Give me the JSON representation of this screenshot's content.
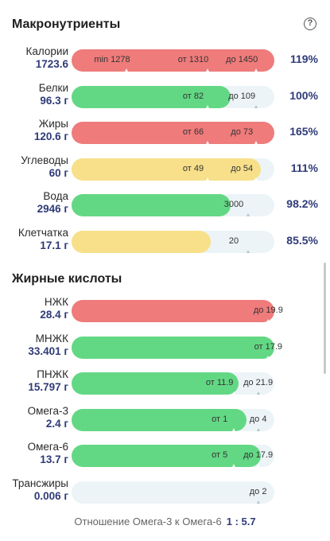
{
  "macro": {
    "title": "Макронутриенты",
    "rows": [
      {
        "label": "Калории",
        "amount": "1723.6",
        "pct": "119%",
        "color": "red",
        "fill": 100,
        "marks": [
          {
            "text": "min 1278",
            "pos": 0.2
          },
          {
            "text": "от 1310",
            "pos": 0.6
          },
          {
            "text": "до 1450",
            "pos": 0.84
          }
        ]
      },
      {
        "label": "Белки",
        "amount": "96.3 г",
        "pct": "100%",
        "color": "green",
        "fill": 78.4,
        "marks": [
          {
            "text": "от 82",
            "pos": 0.6
          },
          {
            "text": "до 109",
            "pos": 0.84
          }
        ]
      },
      {
        "label": "Жиры",
        "amount": "120.6 г",
        "pct": "165%",
        "color": "red",
        "fill": 100,
        "marks": [
          {
            "text": "от 66",
            "pos": 0.6
          },
          {
            "text": "до 73",
            "pos": 0.84
          }
        ]
      },
      {
        "label": "Углеводы",
        "amount": "60 г",
        "pct": "111%",
        "color": "yellow",
        "fill": 93.3,
        "marks": [
          {
            "text": "от 49",
            "pos": 0.6
          },
          {
            "text": "до 54",
            "pos": 0.84
          }
        ]
      },
      {
        "label": "Вода",
        "amount": "2946 г",
        "pct": "98.2%",
        "color": "green",
        "fill": 78.4,
        "marks": [
          {
            "text": "3000",
            "pos": 0.8
          }
        ]
      },
      {
        "label": "Клетчатка",
        "amount": "17.1 г",
        "pct": "85.5%",
        "color": "yellow",
        "fill": 68.6,
        "marks": [
          {
            "text": "20",
            "pos": 0.8
          }
        ]
      }
    ]
  },
  "fatty": {
    "title": "Жирные кислоты",
    "rows": [
      {
        "label": "НЖК",
        "amount": "28.4 г",
        "pct": "",
        "color": "red",
        "fill": 100,
        "marks": [
          {
            "text": "до 19.9",
            "pos": 0.97
          }
        ]
      },
      {
        "label": "МНЖК",
        "amount": "33.401 г",
        "pct": "",
        "color": "green",
        "fill": 100,
        "marks": [
          {
            "text": "от 17.9",
            "pos": 0.97
          }
        ]
      },
      {
        "label": "ПНЖК",
        "amount": "15.797 г",
        "pct": "",
        "color": "green",
        "fill": 82.4,
        "marks": [
          {
            "text": "от 11.9",
            "pos": 0.73
          },
          {
            "text": "до 21.9",
            "pos": 1.05
          }
        ]
      },
      {
        "label": "Омега-3",
        "amount": "2.4 г",
        "pct": "",
        "color": "green",
        "fill": 86.3,
        "marks": [
          {
            "text": "от 1",
            "pos": 0.73
          },
          {
            "text": "до 4",
            "pos": 1.05
          }
        ]
      },
      {
        "label": "Омега-6",
        "amount": "13.7 г",
        "pct": "",
        "color": "green",
        "fill": 93.3,
        "marks": [
          {
            "text": "от 5",
            "pos": 0.73
          },
          {
            "text": "до 17.9",
            "pos": 1.05
          }
        ]
      },
      {
        "label": "Трансжиры",
        "amount": "0.006 г",
        "pct": "",
        "color": "green",
        "fill": 0,
        "marks": [
          {
            "text": "до 2",
            "pos": 1.05
          }
        ]
      }
    ]
  },
  "ratio": {
    "label": "Отношение Омега-3 к Омега-6",
    "value": "1 : 5.7"
  }
}
